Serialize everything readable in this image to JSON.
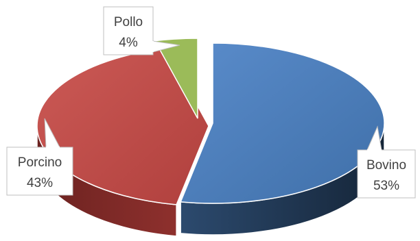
{
  "chart_data": {
    "type": "pie",
    "style": "3d-exploded",
    "slices": [
      {
        "name": "Bovino",
        "value": 53,
        "label": "53%",
        "color": "#4f81bd"
      },
      {
        "name": "Porcino",
        "value": 43,
        "label": "43%",
        "color": "#c0504d"
      },
      {
        "name": "Pollo",
        "value": 4,
        "label": "4%",
        "color": "#9bbb59"
      }
    ],
    "legend": "none",
    "data_labels": "callouts with category name and percentage"
  }
}
